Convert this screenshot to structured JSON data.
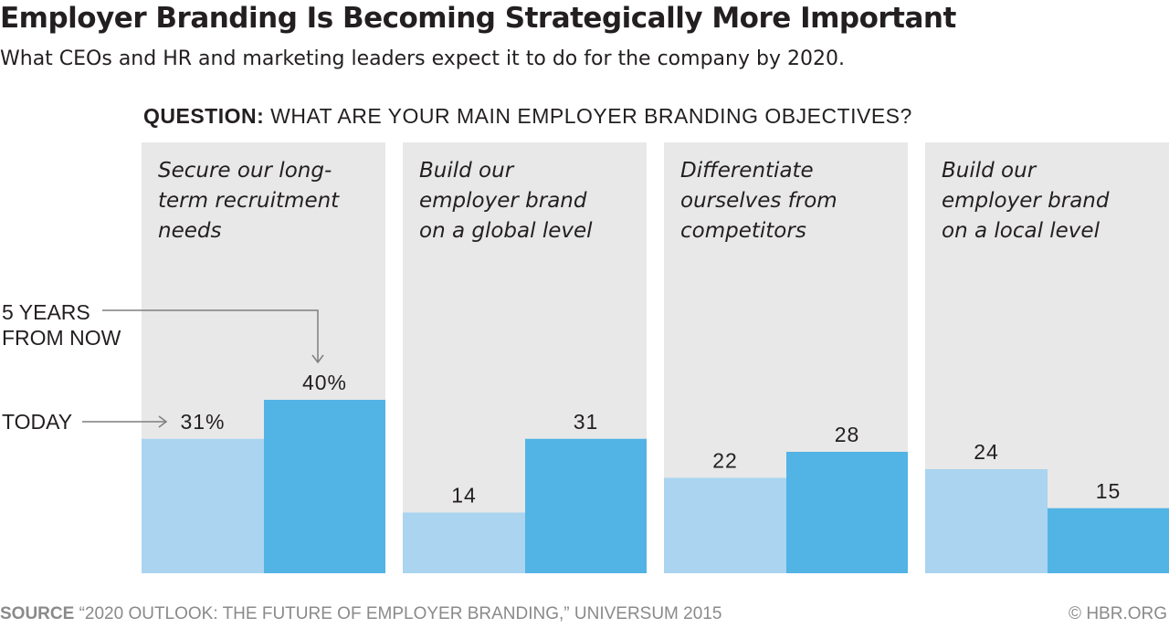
{
  "title": "Employer Branding Is Becoming Strategically More Important",
  "subtitle": "What CEOs and HR and marketing leaders expect it to do for the company by 2020.",
  "question": {
    "label": "QUESTION:",
    "text": "WHAT ARE YOUR MAIN EMPLOYER BRANDING OBJECTIVES?"
  },
  "annotations": {
    "five_years": [
      "5 YEARS",
      "FROM NOW"
    ],
    "today": "TODAY"
  },
  "source": {
    "label": "SOURCE",
    "text": "“2020 OUTLOOK: THE FUTURE OF EMPLOYER BRANDING,” UNIVERSUM 2015"
  },
  "credit": "© HBR.ORG",
  "colors": {
    "panel": "#e8e8e8",
    "today": "#aad4f0",
    "five_years": "#52b3e5",
    "text": "#231f20",
    "arrow": "#7f7f7f"
  },
  "chart_data": {
    "type": "bar",
    "categories": [
      [
        "Secure our long-",
        "term recruitment",
        "needs"
      ],
      [
        "Build our",
        "employer brand",
        "on a global level"
      ],
      [
        "Differentiate",
        "ourselves from",
        "competitors"
      ],
      [
        "Build our",
        "employer brand",
        "on a local level"
      ]
    ],
    "series": [
      {
        "name": "TODAY",
        "values": [
          31,
          14,
          22,
          24
        ]
      },
      {
        "name": "5 YEARS FROM NOW",
        "values": [
          40,
          31,
          28,
          15
        ]
      }
    ],
    "value_labels": [
      [
        "31%",
        "14",
        "22",
        "24"
      ],
      [
        "40%",
        "31",
        "28",
        "15"
      ]
    ],
    "unit": "%",
    "ylim": [
      0,
      40
    ],
    "grid": false,
    "legend": "annotations on first group (left)"
  }
}
